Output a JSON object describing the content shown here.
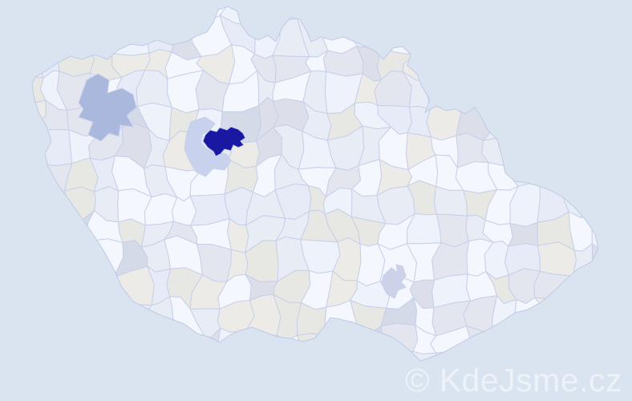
{
  "map": {
    "type": "choropleth",
    "country": "Czech Republic",
    "background_color": "#dae4f1",
    "district_border_color": "#c7cfe9",
    "country_outline_color": "#bfc9e6",
    "region_palette": [
      "#f4f7fd",
      "#eef2fa",
      "#e8ecf5",
      "#ecebe7",
      "#e7e7e3",
      "#e3e6ef",
      "#dcdfe9",
      "#d5dae8",
      "#e6ebf7"
    ],
    "highlights": {
      "highest_density": "#1a18a2",
      "high_density": "#aab8de",
      "medium_density": "#c8d2ec",
      "low_medium_density": "#ccd3e9"
    }
  },
  "watermark": {
    "text": "© KdeJsme.cz",
    "color": "#edf1f8"
  }
}
